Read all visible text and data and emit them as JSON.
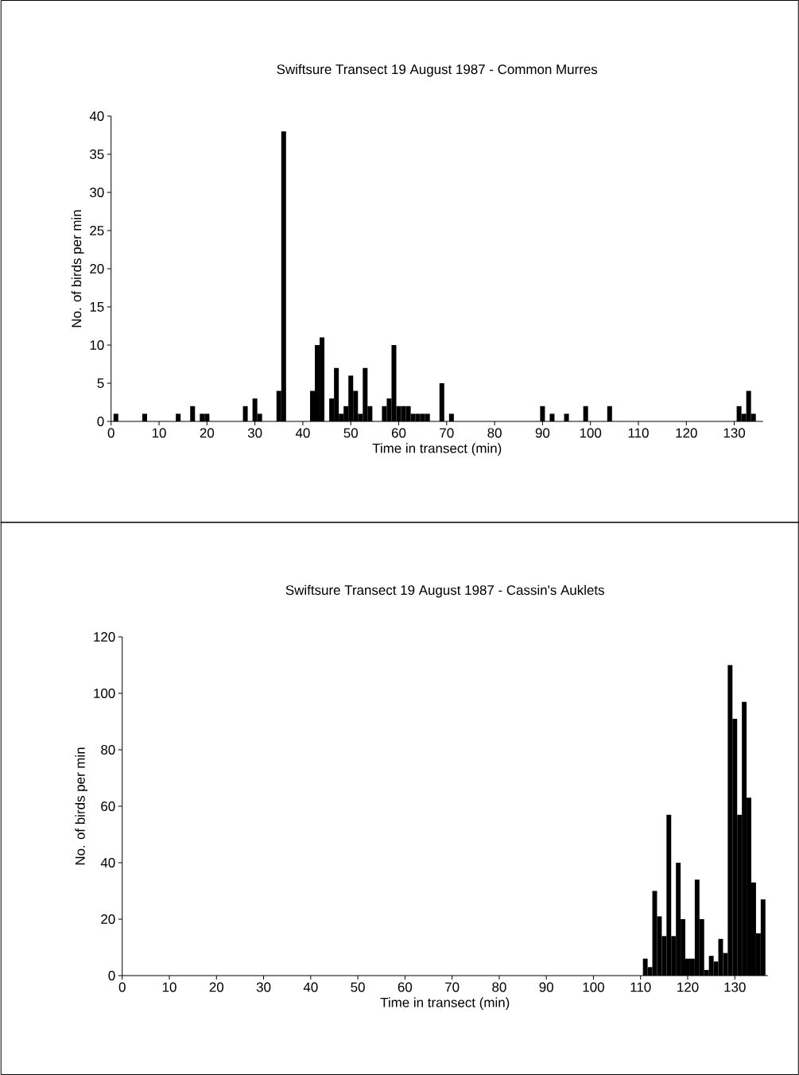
{
  "chart_data": [
    {
      "type": "bar",
      "title": "Swiftsure Transect 19 August 1987 - Common Murres",
      "xlabel": "Time in transect (min)",
      "ylabel": "No. of birds per min",
      "color": "#000000",
      "x": [
        1,
        7,
        14,
        17,
        19,
        20,
        28,
        30,
        31,
        35,
        36,
        42,
        43,
        44,
        46,
        47,
        48,
        49,
        50,
        51,
        52,
        53,
        54,
        57,
        58,
        59,
        60,
        61,
        62,
        63,
        64,
        65,
        66,
        69,
        71,
        90,
        92,
        95,
        99,
        104,
        131,
        132,
        133,
        134
      ],
      "values": [
        1,
        1,
        1,
        2,
        1,
        1,
        2,
        3,
        1,
        4,
        38,
        4,
        10,
        11,
        3,
        7,
        1,
        2,
        6,
        4,
        1,
        7,
        2,
        2,
        3,
        10,
        2,
        2,
        2,
        1,
        1,
        1,
        1,
        5,
        1,
        2,
        1,
        1,
        2,
        2,
        2,
        1,
        4,
        1
      ],
      "xlim": [
        0,
        136
      ],
      "ylim": [
        0,
        40
      ],
      "xticks": [
        0,
        10,
        20,
        30,
        40,
        50,
        60,
        70,
        80,
        90,
        100,
        110,
        120,
        130
      ],
      "yticks": [
        0,
        5,
        10,
        15,
        20,
        25,
        30,
        35,
        40
      ]
    },
    {
      "type": "bar",
      "title": "Swiftsure Transect 19 August 1987 - Cassin's Auklets",
      "xlabel": "Time in transect (min)",
      "ylabel": "No. of birds per min",
      "color": "#000000",
      "x": [
        111,
        112,
        113,
        114,
        115,
        116,
        117,
        118,
        119,
        120,
        121,
        122,
        123,
        124,
        125,
        126,
        127,
        128,
        129,
        130,
        131,
        132,
        133,
        134,
        135,
        136
      ],
      "values": [
        6,
        3,
        30,
        21,
        14,
        57,
        14,
        40,
        20,
        6,
        6,
        34,
        20,
        2,
        7,
        5,
        13,
        8,
        110,
        91,
        57,
        97,
        63,
        33,
        15,
        27
      ],
      "xlim": [
        0,
        137
      ],
      "ylim": [
        0,
        120
      ],
      "xticks": [
        0,
        10,
        20,
        30,
        40,
        50,
        60,
        70,
        80,
        90,
        100,
        110,
        120,
        130
      ],
      "yticks": [
        0,
        20,
        40,
        60,
        80,
        100,
        120
      ]
    }
  ]
}
